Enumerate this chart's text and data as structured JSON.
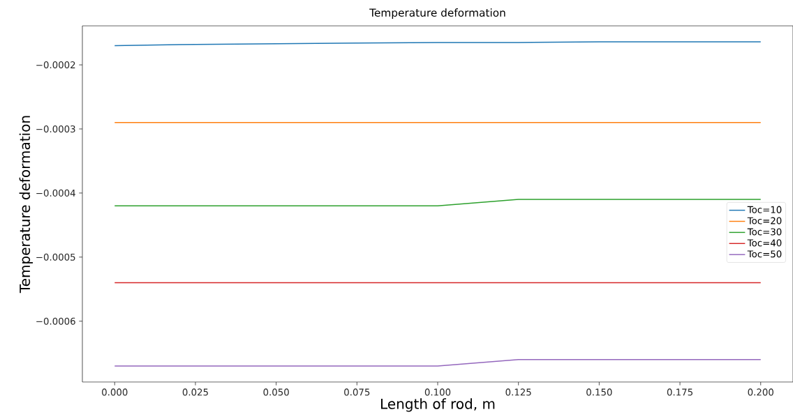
{
  "chart_data": {
    "type": "line",
    "title": "Temperature deformation",
    "xlabel": "Length of rod, m",
    "ylabel": "Temperature deformation",
    "x": [
      0,
      0.025,
      0.05,
      0.075,
      0.1,
      0.125,
      0.15,
      0.175,
      0.2
    ],
    "series": [
      {
        "name": "Toc=10",
        "color": "#1f77b4",
        "values": [
          -0.00017,
          -0.000168,
          -0.000167,
          -0.000166,
          -0.000165,
          -0.000165,
          -0.000164,
          -0.000164,
          -0.000164
        ]
      },
      {
        "name": "Toc=20",
        "color": "#ff7f0e",
        "values": [
          -0.00029,
          -0.00029,
          -0.00029,
          -0.00029,
          -0.00029,
          -0.00029,
          -0.00029,
          -0.00029,
          -0.00029
        ]
      },
      {
        "name": "Toc=30",
        "color": "#2ca02c",
        "values": [
          -0.00042,
          -0.00042,
          -0.00042,
          -0.00042,
          -0.00042,
          -0.00041,
          -0.00041,
          -0.00041,
          -0.00041
        ]
      },
      {
        "name": "Toc=40",
        "color": "#d62728",
        "values": [
          -0.00054,
          -0.00054,
          -0.00054,
          -0.00054,
          -0.00054,
          -0.00054,
          -0.00054,
          -0.00054,
          -0.00054
        ]
      },
      {
        "name": "Toc=50",
        "color": "#9467bd",
        "values": [
          -0.00067,
          -0.00067,
          -0.00067,
          -0.00067,
          -0.00067,
          -0.00066,
          -0.00066,
          -0.00066,
          -0.00066
        ]
      }
    ],
    "xlim": [
      -0.01,
      0.21
    ],
    "ylim": [
      -0.000695,
      -0.000139
    ],
    "xticks": [
      {
        "value": 0,
        "label": "0.000"
      },
      {
        "value": 0.025,
        "label": "0.025"
      },
      {
        "value": 0.05,
        "label": "0.050"
      },
      {
        "value": 0.075,
        "label": "0.075"
      },
      {
        "value": 0.1,
        "label": "0.100"
      },
      {
        "value": 0.125,
        "label": "0.125"
      },
      {
        "value": 0.15,
        "label": "0.150"
      },
      {
        "value": 0.175,
        "label": "0.175"
      },
      {
        "value": 0.2,
        "label": "0.200"
      }
    ],
    "yticks": [
      {
        "value": -0.0006,
        "label": "−0.0006"
      },
      {
        "value": -0.0005,
        "label": "−0.0005"
      },
      {
        "value": -0.0004,
        "label": "−0.0004"
      },
      {
        "value": -0.0003,
        "label": "−0.0003"
      },
      {
        "value": -0.0002,
        "label": "−0.0002"
      }
    ],
    "grid": false,
    "legend": "right",
    "marker": "none",
    "line_style": "solid"
  }
}
